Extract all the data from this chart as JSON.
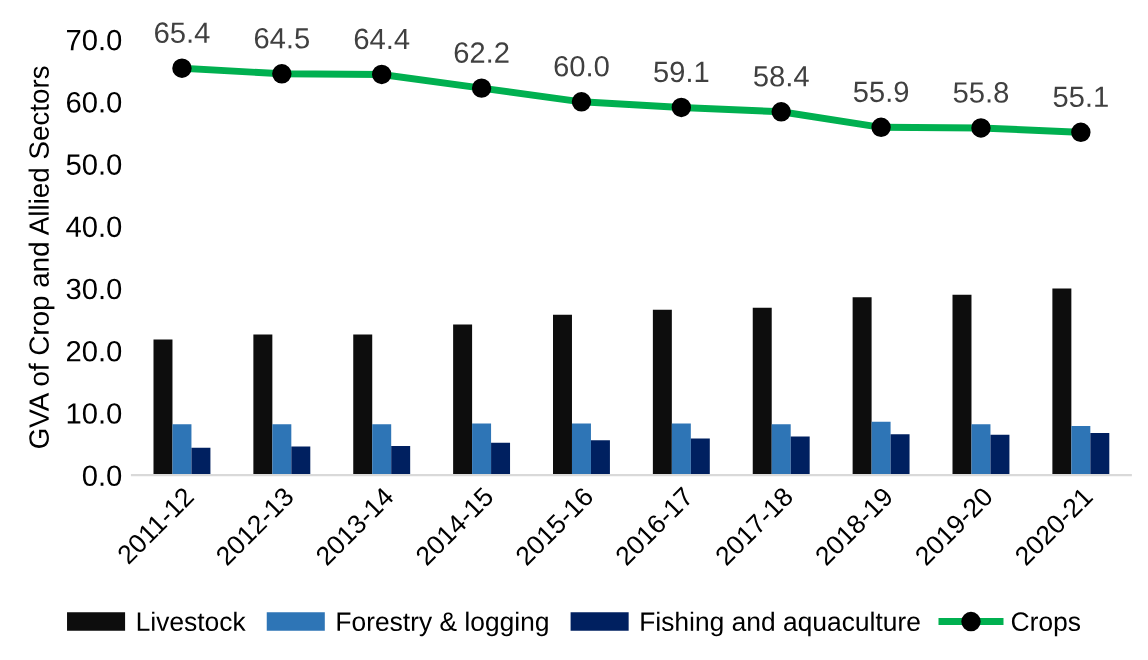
{
  "chart_data": {
    "type": "bar",
    "ylabel": "GVA of Crop and Allied Sectors",
    "categories": [
      "2011-12",
      "2012-13",
      "2013-14",
      "2014-15",
      "2015-16",
      "2016-17",
      "2017-18",
      "2018-19",
      "2019-20",
      "2020-21"
    ],
    "ylim": [
      0,
      70
    ],
    "yticks": [
      {
        "value": 0,
        "label": "0.0"
      },
      {
        "value": 10,
        "label": "10.0"
      },
      {
        "value": 20,
        "label": "20.0"
      },
      {
        "value": 30,
        "label": "30.0"
      },
      {
        "value": 40,
        "label": "40.0"
      },
      {
        "value": 50,
        "label": "50.0"
      },
      {
        "value": 60,
        "label": "60.0"
      },
      {
        "value": 70,
        "label": "70.0"
      }
    ],
    "series": [
      {
        "name": "Livestock",
        "color": "#0d0d0d",
        "values": [
          21.8,
          22.6,
          22.6,
          24.2,
          25.8,
          26.6,
          26.9,
          28.6,
          29.0,
          30.0
        ]
      },
      {
        "name": "Forestry & logging",
        "color": "#2e75b6",
        "values": [
          8.2,
          8.2,
          8.2,
          8.3,
          8.3,
          8.3,
          8.2,
          8.6,
          8.2,
          7.9
        ]
      },
      {
        "name": "Fishing and aquaculture",
        "color": "#002060",
        "values": [
          4.4,
          4.6,
          4.7,
          5.2,
          5.6,
          5.9,
          6.2,
          6.6,
          6.5,
          6.8
        ]
      },
      {
        "name": "Crops",
        "type": "line",
        "color": "#00b050",
        "marker": "circle",
        "values": [
          65.4,
          64.5,
          64.4,
          62.2,
          60.0,
          59.1,
          58.4,
          55.9,
          55.8,
          55.1
        ],
        "value_labels": [
          "65.4",
          "64.5",
          "64.4",
          "62.2",
          "60.0",
          "59.1",
          "58.4",
          "55.9",
          "55.8",
          "55.1"
        ]
      }
    ],
    "grid": false,
    "legend": "bottom"
  }
}
